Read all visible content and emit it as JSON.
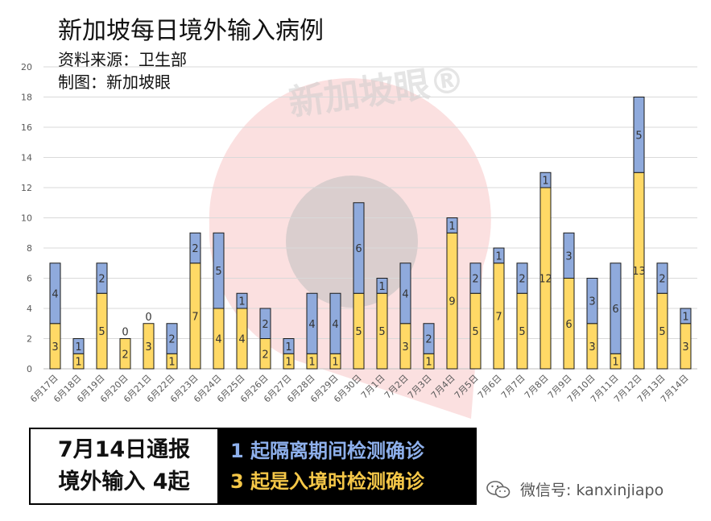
{
  "header": {
    "title": "新加坡每日境外输入病例",
    "source_line": "资料来源：卫生部",
    "credit_line": "制图：新加坡眼"
  },
  "watermark": {
    "text": "新加坡眼®"
  },
  "summary": {
    "date_line": "7月14日通报",
    "total_line": "境外输入 4起",
    "quarantine_line": "1 起隔离期间检测确诊",
    "border_line": "3 起是入境时检测确诊"
  },
  "footer": {
    "wechat_label": "微信号: kanxinjiapo"
  },
  "colors": {
    "border_detected": "#ffd966",
    "quarantine_detected": "#8faadc",
    "grid": "#d9d9d9",
    "watermark_red": "#f4a6a6",
    "watermark_grey": "#bfbfbf"
  },
  "chart_data": {
    "type": "bar",
    "stacked": true,
    "categories": [
      "6月17日",
      "6月18日",
      "6月19日",
      "6月20日",
      "6月21日",
      "6月22日",
      "6月23日",
      "6月24日",
      "6月25日",
      "6月26日",
      "6月27日",
      "6月28日",
      "6月29日",
      "6月30日",
      "7月1日",
      "7月2日",
      "7月3日",
      "7月4日",
      "7月5日",
      "7月6日",
      "7月7日",
      "7月8日",
      "7月9日",
      "7月10日",
      "7月11日",
      "7月12日",
      "7月13日",
      "7月14日"
    ],
    "series": [
      {
        "color": "#ffd966",
        "values": [
          3,
          1,
          5,
          2,
          3,
          1,
          7,
          4,
          4,
          2,
          1,
          1,
          1,
          5,
          5,
          3,
          1,
          9,
          5,
          7,
          5,
          12,
          6,
          3,
          1,
          13,
          5,
          3
        ]
      },
      {
        "color": "#8faadc",
        "values": [
          4,
          1,
          2,
          0,
          0,
          2,
          2,
          5,
          1,
          2,
          1,
          4,
          4,
          6,
          1,
          4,
          2,
          1,
          2,
          1,
          2,
          1,
          3,
          3,
          6,
          5,
          2,
          1
        ]
      }
    ],
    "ylim": [
      0,
      20
    ],
    "yticks": [
      0,
      2,
      4,
      6,
      8,
      10,
      12,
      14,
      16,
      18,
      20
    ],
    "grid": true,
    "legend": "none",
    "title": "新加坡每日境外输入病例"
  }
}
